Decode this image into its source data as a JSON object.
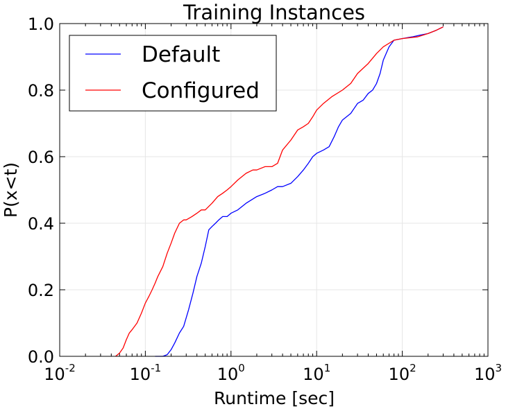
{
  "chart_data": {
    "type": "line",
    "title": "Training Instances",
    "xlabel": "Runtime [sec]",
    "ylabel": "P(x<t)",
    "xscale": "log",
    "xlim": [
      0.01,
      1000
    ],
    "ylim": [
      0.0,
      1.0
    ],
    "grid": true,
    "legend_position": "top-left",
    "x_ticks": [
      {
        "base": "10",
        "exp": "-2"
      },
      {
        "base": "10",
        "exp": "-1"
      },
      {
        "base": "10",
        "exp": "0"
      },
      {
        "base": "10",
        "exp": "1"
      },
      {
        "base": "10",
        "exp": "2"
      },
      {
        "base": "10",
        "exp": "3"
      }
    ],
    "y_ticks": [
      "0.0",
      "0.2",
      "0.4",
      "0.6",
      "0.8",
      "1.0"
    ],
    "series": [
      {
        "name": "Default",
        "color": "#0000ff",
        "x": [
          0.13,
          0.16,
          0.18,
          0.2,
          0.22,
          0.25,
          0.28,
          0.32,
          0.36,
          0.4,
          0.45,
          0.5,
          0.55,
          0.6,
          0.66,
          0.72,
          0.8,
          0.9,
          1.0,
          1.2,
          1.5,
          2.0,
          2.5,
          3.0,
          3.5,
          4.0,
          5.0,
          6.0,
          7.0,
          8.0,
          9.0,
          10.0,
          12.0,
          14.0,
          16.0,
          18.0,
          20.0,
          25.0,
          30.0,
          35.0,
          40.0,
          45.0,
          50.0,
          55.0,
          60.0,
          70.0,
          80.0,
          100.0,
          130.0,
          160.0,
          200.0,
          250.0,
          300.0
        ],
        "y": [
          0.0,
          0.0,
          0.005,
          0.02,
          0.04,
          0.07,
          0.09,
          0.14,
          0.19,
          0.24,
          0.28,
          0.33,
          0.38,
          0.39,
          0.4,
          0.41,
          0.42,
          0.42,
          0.43,
          0.44,
          0.46,
          0.48,
          0.49,
          0.5,
          0.51,
          0.51,
          0.52,
          0.54,
          0.56,
          0.58,
          0.6,
          0.61,
          0.62,
          0.63,
          0.66,
          0.69,
          0.71,
          0.73,
          0.76,
          0.77,
          0.79,
          0.8,
          0.82,
          0.85,
          0.89,
          0.93,
          0.95,
          0.955,
          0.96,
          0.965,
          0.97,
          0.98,
          0.99
        ]
      },
      {
        "name": "Configured",
        "color": "#ff0000",
        "x": [
          0.045,
          0.05,
          0.055,
          0.06,
          0.065,
          0.07,
          0.08,
          0.09,
          0.1,
          0.11,
          0.12,
          0.13,
          0.14,
          0.16,
          0.18,
          0.2,
          0.22,
          0.25,
          0.28,
          0.3,
          0.35,
          0.4,
          0.45,
          0.5,
          0.6,
          0.7,
          0.8,
          0.9,
          1.0,
          1.2,
          1.5,
          1.8,
          2.0,
          2.5,
          3.0,
          3.5,
          4.0,
          5.0,
          6.0,
          7.0,
          8.0,
          9.0,
          10.0,
          12.0,
          15.0,
          20.0,
          25.0,
          30.0,
          40.0,
          50.0,
          60.0,
          80.0,
          100.0,
          150.0,
          200.0,
          250.0,
          300.0
        ],
        "y": [
          0.0,
          0.01,
          0.025,
          0.05,
          0.07,
          0.08,
          0.1,
          0.13,
          0.16,
          0.18,
          0.2,
          0.22,
          0.24,
          0.27,
          0.31,
          0.34,
          0.37,
          0.4,
          0.41,
          0.41,
          0.42,
          0.43,
          0.44,
          0.44,
          0.46,
          0.48,
          0.49,
          0.5,
          0.51,
          0.53,
          0.55,
          0.56,
          0.56,
          0.57,
          0.57,
          0.58,
          0.62,
          0.65,
          0.68,
          0.69,
          0.7,
          0.72,
          0.74,
          0.76,
          0.78,
          0.8,
          0.82,
          0.85,
          0.88,
          0.91,
          0.93,
          0.95,
          0.955,
          0.96,
          0.97,
          0.98,
          0.99
        ]
      }
    ]
  }
}
